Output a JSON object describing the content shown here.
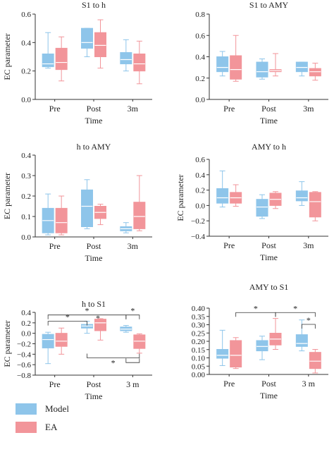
{
  "legend": {
    "model": {
      "label": "Model",
      "color": "#8ec5ea"
    },
    "ea": {
      "label": "EA",
      "color": "#f2959a"
    }
  },
  "chart_data": [
    {
      "type": "box",
      "title": "S1 to h",
      "xlabel": "Time",
      "ylabel": "EC parameter",
      "ylim": [
        0,
        0.6
      ],
      "yticks": [
        "0.0",
        "0.2",
        "0.4",
        "0.6"
      ],
      "categories": [
        "Pre",
        "Post",
        "3m"
      ],
      "series": [
        {
          "name": "Model",
          "boxes": [
            {
              "min": 0.22,
              "q1": 0.23,
              "median": 0.25,
              "q3": 0.32,
              "max": 0.47
            },
            {
              "min": 0.3,
              "q1": 0.36,
              "median": 0.4,
              "q3": 0.5,
              "max": 0.5
            },
            {
              "min": 0.2,
              "q1": 0.25,
              "median": 0.28,
              "q3": 0.33,
              "max": 0.42
            }
          ]
        },
        {
          "name": "EA",
          "boxes": [
            {
              "min": 0.13,
              "q1": 0.21,
              "median": 0.26,
              "q3": 0.36,
              "max": 0.44
            },
            {
              "min": 0.22,
              "q1": 0.3,
              "median": 0.38,
              "q3": 0.47,
              "max": 0.56
            },
            {
              "min": 0.11,
              "q1": 0.2,
              "median": 0.25,
              "q3": 0.32,
              "max": 0.41
            }
          ]
        }
      ],
      "brackets": []
    },
    {
      "type": "box",
      "title": "S1 to AMY",
      "xlabel": "Time",
      "ylabel": "",
      "ylim": [
        0,
        0.8
      ],
      "yticks": [
        "0.0",
        "0.2",
        "0.4",
        "0.6",
        "0.8"
      ],
      "categories": [
        "Pre",
        "Post",
        "3m"
      ],
      "series": [
        {
          "name": "Model",
          "boxes": [
            {
              "min": 0.22,
              "q1": 0.26,
              "median": 0.3,
              "q3": 0.4,
              "max": 0.45
            },
            {
              "min": 0.19,
              "q1": 0.21,
              "median": 0.26,
              "q3": 0.35,
              "max": 0.38
            },
            {
              "min": 0.22,
              "q1": 0.26,
              "median": 0.3,
              "q3": 0.35,
              "max": 0.35
            }
          ]
        },
        {
          "name": "EA",
          "boxes": [
            {
              "min": 0.17,
              "q1": 0.19,
              "median": 0.28,
              "q3": 0.41,
              "max": 0.6
            },
            {
              "min": 0.22,
              "q1": 0.26,
              "median": 0.27,
              "q3": 0.28,
              "max": 0.43
            },
            {
              "min": 0.18,
              "q1": 0.22,
              "median": 0.26,
              "q3": 0.29,
              "max": 0.34
            }
          ]
        }
      ],
      "brackets": []
    },
    {
      "type": "box",
      "title": "h to AMY",
      "xlabel": "Time",
      "ylabel": "EC parameter",
      "ylim": [
        0,
        0.4
      ],
      "yticks": [
        "0.0",
        "0.1",
        "0.2",
        "0.3",
        "0.4"
      ],
      "categories": [
        "Pre",
        "Post",
        "3m"
      ],
      "series": [
        {
          "name": "Model",
          "boxes": [
            {
              "min": 0.01,
              "q1": 0.02,
              "median": 0.08,
              "q3": 0.14,
              "max": 0.21
            },
            {
              "min": 0.04,
              "q1": 0.05,
              "median": 0.15,
              "q3": 0.23,
              "max": 0.28
            },
            {
              "min": 0.02,
              "q1": 0.03,
              "median": 0.04,
              "q3": 0.05,
              "max": 0.07
            }
          ]
        },
        {
          "name": "EA",
          "boxes": [
            {
              "min": 0.01,
              "q1": 0.02,
              "median": 0.07,
              "q3": 0.14,
              "max": 0.2
            },
            {
              "min": 0.06,
              "q1": 0.09,
              "median": 0.12,
              "q3": 0.15,
              "max": 0.16
            },
            {
              "min": 0.03,
              "q1": 0.04,
              "median": 0.1,
              "q3": 0.17,
              "max": 0.3
            }
          ]
        }
      ],
      "brackets": []
    },
    {
      "type": "box",
      "title": "AMY to h",
      "xlabel": "Time",
      "ylabel": "EC parameter",
      "ylim": [
        -0.4,
        0.6
      ],
      "yticks": [
        "−0.4",
        "−0.2",
        "0.0",
        "0.2",
        "0.4",
        "0.6"
      ],
      "categories": [
        "Pre",
        "Post",
        "3m"
      ],
      "series": [
        {
          "name": "Model",
          "boxes": [
            {
              "min": -0.02,
              "q1": 0.03,
              "median": 0.1,
              "q3": 0.22,
              "max": 0.45
            },
            {
              "min": -0.17,
              "q1": -0.14,
              "median": -0.02,
              "q3": 0.08,
              "max": 0.14
            },
            {
              "min": 0.0,
              "q1": 0.06,
              "median": 0.1,
              "q3": 0.19,
              "max": 0.31
            }
          ]
        },
        {
          "name": "EA",
          "boxes": [
            {
              "min": -0.01,
              "q1": 0.03,
              "median": 0.1,
              "q3": 0.17,
              "max": 0.27
            },
            {
              "min": -0.04,
              "q1": 0.0,
              "median": 0.08,
              "q3": 0.16,
              "max": 0.18
            },
            {
              "min": -0.2,
              "q1": -0.15,
              "median": 0.05,
              "q3": 0.17,
              "max": 0.18
            }
          ]
        }
      ],
      "brackets": []
    },
    {
      "type": "box",
      "title": "h to S1",
      "xlabel": "Time",
      "ylabel": "EC parameter",
      "ylim": [
        -0.8,
        0.4
      ],
      "yticks": [
        "−0.8",
        "−0.6",
        "−0.4",
        "−0.2",
        "0.0",
        "0.2",
        "0.4"
      ],
      "categories": [
        "Pre",
        "Post",
        "3 m"
      ],
      "series": [
        {
          "name": "Model",
          "boxes": [
            {
              "min": -0.58,
              "q1": -0.28,
              "median": -0.12,
              "q3": -0.02,
              "max": 0.02
            },
            {
              "min": 0.0,
              "q1": 0.1,
              "median": 0.14,
              "q3": 0.17,
              "max": 0.23
            },
            {
              "min": 0.02,
              "q1": 0.05,
              "median": 0.08,
              "q3": 0.12,
              "max": 0.15
            }
          ]
        },
        {
          "name": "EA",
          "boxes": [
            {
              "min": -0.4,
              "q1": -0.25,
              "median": -0.15,
              "q3": 0.0,
              "max": 0.1
            },
            {
              "min": -0.13,
              "q1": 0.05,
              "median": 0.2,
              "q3": 0.27,
              "max": 0.28
            },
            {
              "min": -0.38,
              "q1": -0.29,
              "median": -0.15,
              "q3": -0.03,
              "max": -0.01
            }
          ]
        }
      ],
      "brackets": [
        {
          "from": [
            0,
            0
          ],
          "to": [
            2,
            0
          ],
          "level": 0.35,
          "label": "*",
          "dir": "up"
        },
        {
          "from": [
            0,
            0
          ],
          "to": [
            1,
            0
          ],
          "level": 0.23,
          "label": "*",
          "dir": "up"
        },
        {
          "from": [
            2,
            0
          ],
          "to": [
            2,
            1
          ],
          "level": 0.35,
          "label": "*",
          "dir": "up"
        },
        {
          "from": [
            1,
            0
          ],
          "to": [
            1,
            1
          ],
          "level": 0.29,
          "label": "*",
          "dir": "up",
          "short": true
        },
        {
          "from": [
            1,
            0
          ],
          "to": [
            2,
            1
          ],
          "level": -0.47,
          "label": "*",
          "dir": "down"
        },
        {
          "from": [
            2,
            0
          ],
          "to": [
            2,
            1
          ],
          "level": -0.56,
          "label": "",
          "dir": "down",
          "noStar": true
        }
      ]
    },
    {
      "type": "box",
      "title": "AMY to S1",
      "xlabel": "Time",
      "ylabel": "",
      "ylim": [
        0,
        0.45
      ],
      "yticks": [
        "0.00",
        "0.05",
        "0.10",
        "0.15",
        "0.20",
        "0.25",
        "0.30",
        "0.35",
        "0.40"
      ],
      "categories": [
        "Pre",
        "Post",
        "3 m"
      ],
      "series": [
        {
          "name": "Model",
          "boxes": [
            {
              "min": 0.06,
              "q1": 0.11,
              "median": 0.13,
              "q3": 0.17,
              "max": 0.3
            },
            {
              "min": 0.1,
              "q1": 0.16,
              "median": 0.19,
              "q3": 0.23,
              "max": 0.26
            },
            {
              "min": 0.16,
              "q1": 0.19,
              "median": 0.21,
              "q3": 0.27,
              "max": 0.37
            }
          ]
        },
        {
          "name": "EA",
          "boxes": [
            {
              "min": 0.04,
              "q1": 0.05,
              "median": 0.13,
              "q3": 0.23,
              "max": 0.25
            },
            {
              "min": 0.17,
              "q1": 0.2,
              "median": 0.24,
              "q3": 0.28,
              "max": 0.38
            },
            {
              "min": 0.01,
              "q1": 0.04,
              "median": 0.09,
              "q3": 0.15,
              "max": 0.17
            }
          ]
        }
      ],
      "brackets": [
        {
          "from": [
            0,
            1
          ],
          "to": [
            1,
            1
          ],
          "level": 0.42,
          "label": "*",
          "dir": "up"
        },
        {
          "from": [
            1,
            1
          ],
          "to": [
            2,
            1
          ],
          "level": 0.42,
          "label": "*",
          "dir": "up"
        },
        {
          "from": [
            2,
            0
          ],
          "to": [
            2,
            1
          ],
          "level": 0.34,
          "label": "*",
          "dir": "up"
        }
      ]
    }
  ]
}
